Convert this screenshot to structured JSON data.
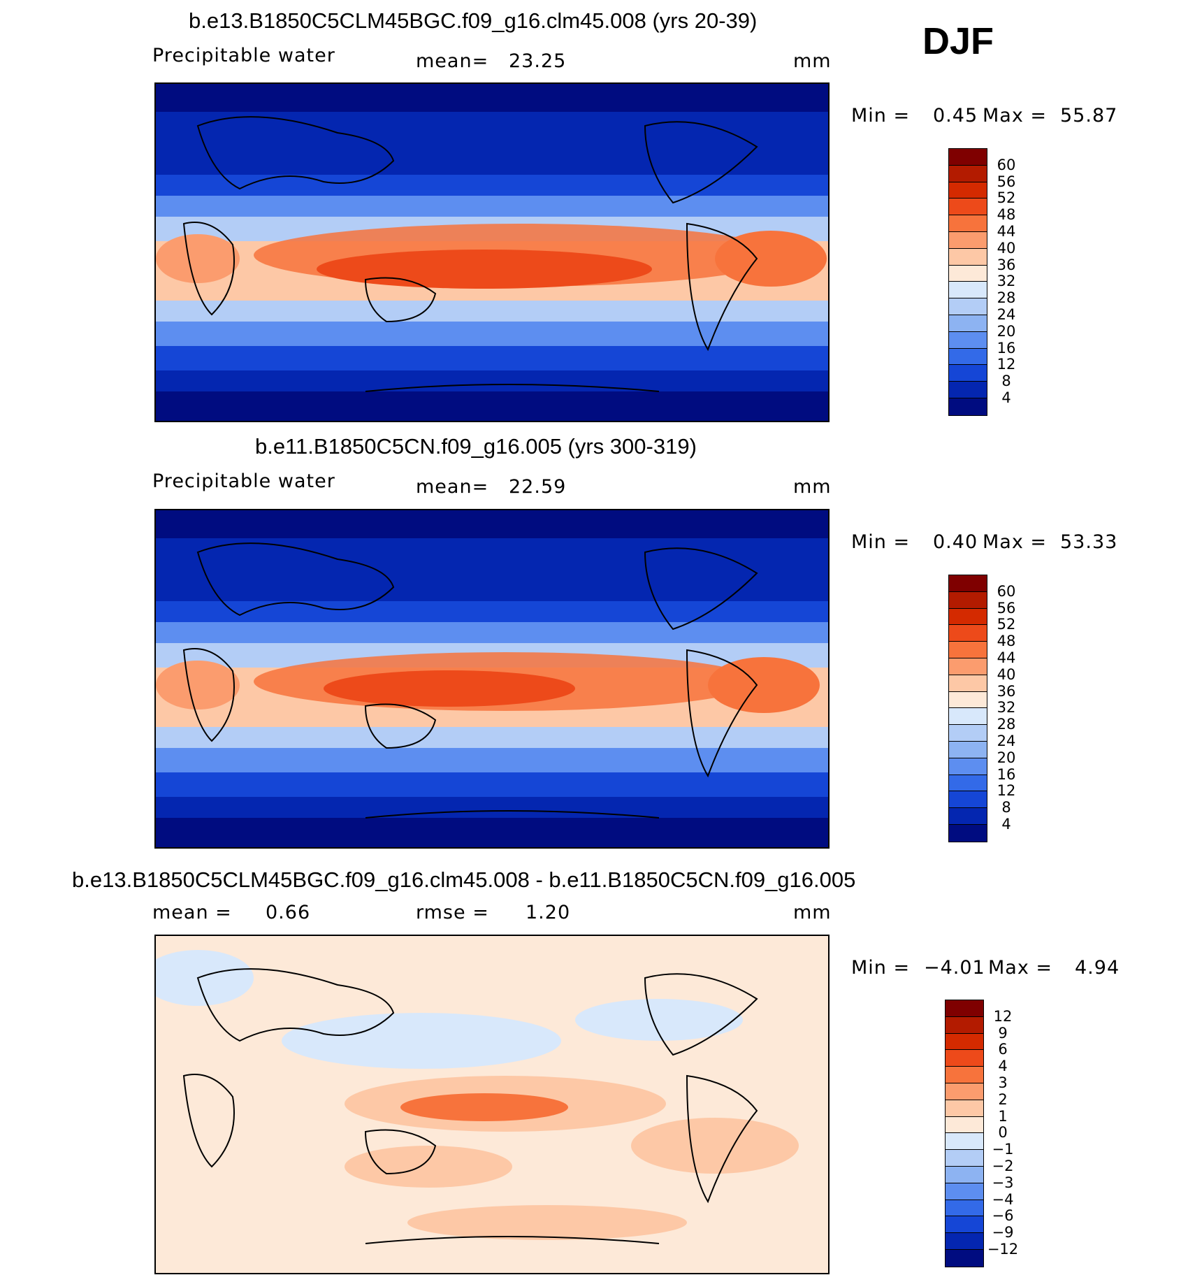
{
  "season": "DJF",
  "panels": [
    {
      "title": "b.e13.B1850C5CLM45BGC.f09_g16.clm45.008 (yrs 20-39)",
      "variable": "Precipitable water",
      "stat1_label": "mean=",
      "stat1_value": "23.25",
      "stat2_label": "",
      "stat2_value": "",
      "units": "mm",
      "minmax": {
        "min_label": "Min =",
        "min": "0.45",
        "max_label": "Max =",
        "max": "55.87"
      },
      "colorbar": {
        "ticks": [
          "60",
          "56",
          "52",
          "48",
          "44",
          "40",
          "36",
          "32",
          "28",
          "24",
          "20",
          "16",
          "12",
          "8",
          "4"
        ],
        "colors": [
          "#7f0000",
          "#b31b00",
          "#d42a00",
          "#ed4a1a",
          "#f7733c",
          "#fb9c6e",
          "#fdc8a6",
          "#fde9d8",
          "#d8e8fb",
          "#b3cdf6",
          "#8db3f2",
          "#5d8ef0",
          "#336ae8",
          "#1546d6",
          "#0426b0",
          "#000c80"
        ]
      },
      "chart_data": {
        "type": "heatmap",
        "field": "Precipitable water",
        "units": "mm",
        "mean": 23.25,
        "min": 0.45,
        "max": 55.87,
        "levels": [
          4,
          8,
          12,
          16,
          20,
          24,
          28,
          32,
          36,
          40,
          44,
          48,
          52,
          56,
          60
        ]
      }
    },
    {
      "title": "b.e11.B1850C5CN.f09_g16.005 (yrs 300-319)",
      "variable": "Precipitable water",
      "stat1_label": "mean=",
      "stat1_value": "22.59",
      "stat2_label": "",
      "stat2_value": "",
      "units": "mm",
      "minmax": {
        "min_label": "Min =",
        "min": "0.40",
        "max_label": "Max =",
        "max": "53.33"
      },
      "colorbar": {
        "ticks": [
          "60",
          "56",
          "52",
          "48",
          "44",
          "40",
          "36",
          "32",
          "28",
          "24",
          "20",
          "16",
          "12",
          "8",
          "4"
        ],
        "colors": [
          "#7f0000",
          "#b31b00",
          "#d42a00",
          "#ed4a1a",
          "#f7733c",
          "#fb9c6e",
          "#fdc8a6",
          "#fde9d8",
          "#d8e8fb",
          "#b3cdf6",
          "#8db3f2",
          "#5d8ef0",
          "#336ae8",
          "#1546d6",
          "#0426b0",
          "#000c80"
        ]
      },
      "chart_data": {
        "type": "heatmap",
        "field": "Precipitable water",
        "units": "mm",
        "mean": 22.59,
        "min": 0.4,
        "max": 53.33,
        "levels": [
          4,
          8,
          12,
          16,
          20,
          24,
          28,
          32,
          36,
          40,
          44,
          48,
          52,
          56,
          60
        ]
      }
    },
    {
      "title": "b.e13.B1850C5CLM45BGC.f09_g16.clm45.008 - b.e11.B1850C5CN.f09_g16.005",
      "variable": "",
      "stat1_label": "mean =",
      "stat1_value": "0.66",
      "stat2_label": "rmse =",
      "stat2_value": "1.20",
      "units": "mm",
      "minmax": {
        "min_label": "Min =",
        "min": "−4.01",
        "max_label": "Max =",
        "max": "4.94"
      },
      "colorbar": {
        "ticks": [
          "12",
          "9",
          "6",
          "4",
          "3",
          "2",
          "1",
          "0",
          "−1",
          "−2",
          "−3",
          "−4",
          "−6",
          "−9",
          "−12"
        ],
        "colors": [
          "#7f0000",
          "#b31b00",
          "#d42a00",
          "#ed4a1a",
          "#f7733c",
          "#fb9c6e",
          "#fdc8a6",
          "#fde9d8",
          "#d8e8fb",
          "#b3cdf6",
          "#8db3f2",
          "#5d8ef0",
          "#336ae8",
          "#1546d6",
          "#0426b0",
          "#000c80"
        ]
      },
      "chart_data": {
        "type": "heatmap",
        "field": "difference",
        "units": "mm",
        "mean": 0.66,
        "rmse": 1.2,
        "min": -4.01,
        "max": 4.94,
        "levels": [
          -12,
          -9,
          -6,
          -4,
          -3,
          -2,
          -1,
          0,
          1,
          2,
          3,
          4,
          6,
          9,
          12
        ]
      }
    }
  ]
}
